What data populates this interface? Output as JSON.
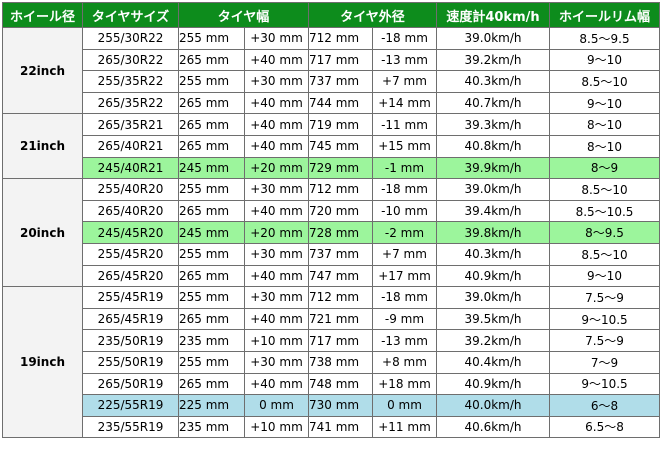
{
  "headers": {
    "wheel": "ホイール径",
    "tire_size": "タイヤサイズ",
    "tire_width": "タイヤ幅",
    "tire_diameter": "タイヤ外径",
    "speedometer": "速度計40km/h",
    "rim_width": "ホイールリム幅"
  },
  "groups": [
    {
      "label": "22inch",
      "rows": [
        {
          "size": "255/30R22",
          "width": "255 mm",
          "width_diff": "+30 mm",
          "dia": "712 mm",
          "dia_diff": "-18 mm",
          "speed": "39.0km/h",
          "rim": "8.5～9.5",
          "highlight": "none"
        },
        {
          "size": "265/30R22",
          "width": "265 mm",
          "width_diff": "+40 mm",
          "dia": "717 mm",
          "dia_diff": "-13 mm",
          "speed": "39.2km/h",
          "rim": "9～10",
          "highlight": "none"
        },
        {
          "size": "255/35R22",
          "width": "255 mm",
          "width_diff": "+30 mm",
          "dia": "737 mm",
          "dia_diff": "+7 mm",
          "speed": "40.3km/h",
          "rim": "8.5～10",
          "highlight": "none"
        },
        {
          "size": "265/35R22",
          "width": "265 mm",
          "width_diff": "+40 mm",
          "dia": "744 mm",
          "dia_diff": "+14 mm",
          "speed": "40.7km/h",
          "rim": "9～10",
          "highlight": "none"
        }
      ]
    },
    {
      "label": "21inch",
      "rows": [
        {
          "size": "265/35R21",
          "width": "265 mm",
          "width_diff": "+40 mm",
          "dia": "719 mm",
          "dia_diff": "-11 mm",
          "speed": "39.3km/h",
          "rim": "8～10",
          "highlight": "none"
        },
        {
          "size": "265/40R21",
          "width": "265 mm",
          "width_diff": "+40 mm",
          "dia": "745 mm",
          "dia_diff": "+15 mm",
          "speed": "40.8km/h",
          "rim": "8～10",
          "highlight": "none"
        },
        {
          "size": "245/40R21",
          "width": "245 mm",
          "width_diff": "+20 mm",
          "dia": "729 mm",
          "dia_diff": "-1 mm",
          "speed": "39.9km/h",
          "rim": "8～9",
          "highlight": "green"
        }
      ]
    },
    {
      "label": "20inch",
      "rows": [
        {
          "size": "255/40R20",
          "width": "255 mm",
          "width_diff": "+30 mm",
          "dia": "712 mm",
          "dia_diff": "-18 mm",
          "speed": "39.0km/h",
          "rim": "8.5～10",
          "highlight": "none"
        },
        {
          "size": "265/40R20",
          "width": "265 mm",
          "width_diff": "+40 mm",
          "dia": "720 mm",
          "dia_diff": "-10 mm",
          "speed": "39.4km/h",
          "rim": "8.5～10.5",
          "highlight": "none"
        },
        {
          "size": "245/45R20",
          "width": "245 mm",
          "width_diff": "+20 mm",
          "dia": "728 mm",
          "dia_diff": "-2 mm",
          "speed": "39.8km/h",
          "rim": "8～9.5",
          "highlight": "green"
        },
        {
          "size": "255/45R20",
          "width": "255 mm",
          "width_diff": "+30 mm",
          "dia": "737 mm",
          "dia_diff": "+7 mm",
          "speed": "40.3km/h",
          "rim": "8.5～10",
          "highlight": "none"
        },
        {
          "size": "265/45R20",
          "width": "265 mm",
          "width_diff": "+40 mm",
          "dia": "747 mm",
          "dia_diff": "+17 mm",
          "speed": "40.9km/h",
          "rim": "9～10",
          "highlight": "none"
        }
      ]
    },
    {
      "label": "19inch",
      "rows": [
        {
          "size": "255/45R19",
          "width": "255 mm",
          "width_diff": "+30 mm",
          "dia": "712 mm",
          "dia_diff": "-18 mm",
          "speed": "39.0km/h",
          "rim": "7.5～9",
          "highlight": "none"
        },
        {
          "size": "265/45R19",
          "width": "265 mm",
          "width_diff": "+40 mm",
          "dia": "721 mm",
          "dia_diff": "-9 mm",
          "speed": "39.5km/h",
          "rim": "9～10.5",
          "highlight": "none"
        },
        {
          "size": "235/50R19",
          "width": "235 mm",
          "width_diff": "+10 mm",
          "dia": "717 mm",
          "dia_diff": "-13 mm",
          "speed": "39.2km/h",
          "rim": "7.5～9",
          "highlight": "none"
        },
        {
          "size": "255/50R19",
          "width": "255 mm",
          "width_diff": "+30 mm",
          "dia": "738 mm",
          "dia_diff": "+8 mm",
          "speed": "40.4km/h",
          "rim": "7～9",
          "highlight": "none"
        },
        {
          "size": "265/50R19",
          "width": "265 mm",
          "width_diff": "+40 mm",
          "dia": "748 mm",
          "dia_diff": "+18 mm",
          "speed": "40.9km/h",
          "rim": "9～10.5",
          "highlight": "none"
        },
        {
          "size": "225/55R19",
          "width": "225 mm",
          "width_diff": "0 mm",
          "dia": "730 mm",
          "dia_diff": "0 mm",
          "speed": "40.0km/h",
          "rim": "6～8",
          "highlight": "blue"
        },
        {
          "size": "235/55R19",
          "width": "235 mm",
          "width_diff": "+10 mm",
          "dia": "741 mm",
          "dia_diff": "+11 mm",
          "speed": "40.6km/h",
          "rim": "6.5～8",
          "highlight": "none"
        }
      ]
    }
  ]
}
